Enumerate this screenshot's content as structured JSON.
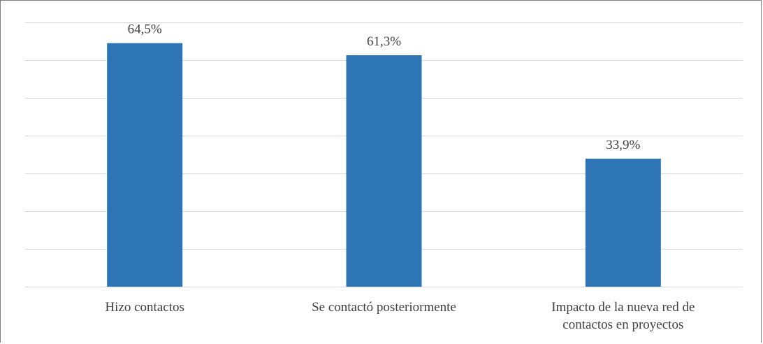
{
  "header_fragment": "",
  "colors": {
    "bar": "#2e75b6",
    "grid": "#d9d9d9",
    "text": "#404040",
    "frame": "#7f7f7f"
  },
  "chart_data": {
    "type": "bar",
    "title": "",
    "xlabel": "",
    "ylabel": "",
    "categories": [
      "Hizo contactos",
      "Se contactó posteriormente",
      "Impacto de la nueva red de contactos en proyectos"
    ],
    "category_lines": [
      [
        "Hizo contactos"
      ],
      [
        "Se contactó posteriormente"
      ],
      [
        "Impacto de la nueva red de",
        "contactos en proyectos"
      ]
    ],
    "values": [
      64.5,
      61.3,
      33.9
    ],
    "value_labels": [
      "64,5%",
      "61,3%",
      "33,9%"
    ],
    "ylim": [
      0,
      70
    ],
    "gridline_step": 10,
    "grid": true,
    "legend": "none"
  }
}
